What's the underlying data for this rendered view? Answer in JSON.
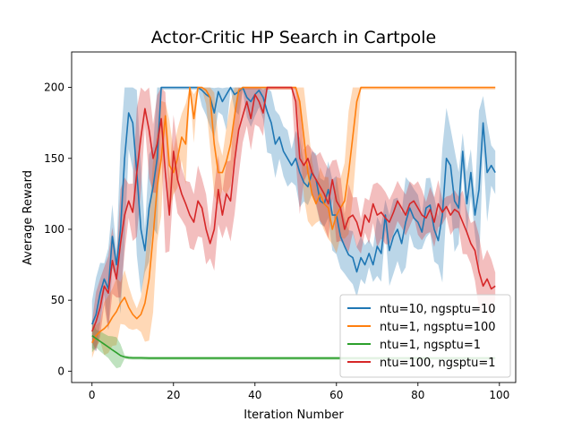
{
  "chart_data": {
    "type": "line",
    "title": "Actor-Critic HP Search in Cartpole",
    "xlabel": "Iteration Number",
    "ylabel": "Average Reward",
    "xlim": [
      -5,
      104
    ],
    "ylim": [
      -8,
      225
    ],
    "xticks": [
      0,
      20,
      40,
      60,
      80,
      100
    ],
    "yticks": [
      0,
      50,
      100,
      150,
      200
    ],
    "grid": false,
    "legend_position": "bottom-right",
    "series": [
      {
        "name": "ntu=10, ngsptu=10",
        "color": "#1f77b4",
        "x": [
          0,
          1,
          2,
          3,
          4,
          5,
          6,
          7,
          8,
          9,
          10,
          11,
          12,
          13,
          14,
          15,
          16,
          17,
          18,
          19,
          20,
          21,
          22,
          23,
          24,
          25,
          26,
          27,
          28,
          29,
          30,
          31,
          32,
          33,
          34,
          35,
          36,
          37,
          38,
          39,
          40,
          41,
          42,
          43,
          44,
          45,
          46,
          47,
          48,
          49,
          50,
          51,
          52,
          53,
          54,
          55,
          56,
          57,
          58,
          59,
          60,
          61,
          62,
          63,
          64,
          65,
          66,
          67,
          68,
          69,
          70,
          71,
          72,
          73,
          74,
          75,
          76,
          77,
          78,
          79,
          80,
          81,
          82,
          83,
          84,
          85,
          86,
          87,
          88,
          89,
          90,
          91,
          92,
          93,
          94,
          95,
          96,
          97,
          98,
          99
        ],
        "y": [
          33,
          40,
          55,
          65,
          58,
          95,
          75,
          100,
          150,
          182,
          175,
          140,
          100,
          85,
          115,
          130,
          150,
          200,
          200,
          200,
          200,
          200,
          200,
          200,
          200,
          200,
          200,
          198,
          195,
          193,
          182,
          197,
          190,
          195,
          200,
          195,
          197,
          200,
          193,
          190,
          195,
          198,
          193,
          183,
          175,
          160,
          165,
          155,
          150,
          145,
          150,
          140,
          133,
          130,
          140,
          135,
          120,
          118,
          128,
          110,
          110,
          95,
          88,
          82,
          80,
          70,
          80,
          75,
          83,
          75,
          88,
          83,
          110,
          85,
          95,
          100,
          90,
          105,
          115,
          108,
          105,
          98,
          115,
          117,
          100,
          92,
          110,
          150,
          145,
          120,
          115,
          155,
          118,
          140,
          110,
          128,
          175,
          140,
          145,
          140
        ]
      },
      {
        "name": "ntu=1, ngsptu=100",
        "color": "#ff7f0e",
        "x": [
          0,
          1,
          2,
          3,
          4,
          5,
          6,
          7,
          8,
          9,
          10,
          11,
          12,
          13,
          14,
          15,
          16,
          17,
          18,
          19,
          20,
          21,
          22,
          23,
          24,
          25,
          26,
          27,
          28,
          29,
          30,
          31,
          32,
          33,
          34,
          35,
          36,
          37,
          38,
          39,
          40,
          41,
          42,
          43,
          44,
          45,
          46,
          47,
          48,
          49,
          50,
          51,
          52,
          53,
          54,
          55,
          56,
          57,
          58,
          59,
          60,
          61,
          62,
          63,
          64,
          65,
          66,
          67,
          68,
          69,
          70,
          71,
          72,
          73,
          74,
          75,
          76,
          77,
          78,
          79,
          80,
          81,
          82,
          83,
          84,
          85,
          86,
          87,
          88,
          89,
          90,
          91,
          92,
          93,
          94,
          95,
          96,
          97,
          98,
          99
        ],
        "y": [
          20,
          25,
          28,
          30,
          33,
          38,
          42,
          48,
          52,
          45,
          40,
          37,
          40,
          48,
          65,
          95,
          130,
          150,
          180,
          145,
          140,
          150,
          165,
          160,
          200,
          178,
          200,
          200,
          198,
          193,
          160,
          140,
          140,
          148,
          160,
          180,
          198,
          200,
          200,
          200,
          200,
          200,
          200,
          200,
          200,
          200,
          200,
          200,
          200,
          200,
          200,
          190,
          165,
          140,
          125,
          118,
          125,
          118,
          115,
          100,
          110,
          115,
          120,
          140,
          165,
          190,
          200,
          200,
          200,
          200,
          200,
          200,
          200,
          200,
          200,
          200,
          200,
          200,
          200,
          200,
          200,
          200,
          200,
          200,
          200,
          200,
          200,
          200,
          200,
          200,
          200,
          200,
          200,
          200,
          200,
          200,
          200,
          200,
          200,
          200
        ]
      },
      {
        "name": "ntu=1, ngsptu=1",
        "color": "#2ca02c",
        "x": [
          0,
          1,
          2,
          3,
          4,
          5,
          6,
          7,
          8,
          9,
          10,
          12,
          14,
          16,
          18,
          20,
          25,
          30,
          40,
          50,
          60,
          70,
          80,
          90,
          99
        ],
        "y": [
          25,
          23,
          21,
          19,
          17,
          15,
          13,
          11,
          10,
          9.5,
          9.3,
          9.3,
          9.2,
          9.2,
          9.2,
          9.2,
          9.2,
          9.2,
          9.2,
          9.2,
          9.2,
          9.2,
          9.2,
          9.2,
          9.2
        ]
      },
      {
        "name": "ntu=100, ngsptu=1",
        "color": "#d62728",
        "x": [
          0,
          1,
          2,
          3,
          4,
          5,
          6,
          7,
          8,
          9,
          10,
          11,
          12,
          13,
          14,
          15,
          16,
          17,
          18,
          19,
          20,
          21,
          22,
          23,
          24,
          25,
          26,
          27,
          28,
          29,
          30,
          31,
          32,
          33,
          34,
          35,
          36,
          37,
          38,
          39,
          40,
          41,
          42,
          43,
          44,
          45,
          46,
          47,
          48,
          49,
          50,
          51,
          52,
          53,
          54,
          55,
          56,
          57,
          58,
          59,
          60,
          61,
          62,
          63,
          64,
          65,
          66,
          67,
          68,
          69,
          70,
          71,
          72,
          73,
          74,
          75,
          76,
          77,
          78,
          79,
          80,
          81,
          82,
          83,
          84,
          85,
          86,
          87,
          88,
          89,
          90,
          91,
          92,
          93,
          94,
          95,
          96,
          97,
          98,
          99
        ],
        "y": [
          28,
          35,
          45,
          60,
          55,
          78,
          65,
          90,
          110,
          120,
          112,
          140,
          165,
          185,
          170,
          150,
          160,
          178,
          140,
          110,
          155,
          135,
          125,
          118,
          110,
          105,
          120,
          115,
          100,
          90,
          100,
          128,
          110,
          125,
          120,
          148,
          170,
          180,
          190,
          178,
          195,
          190,
          182,
          200,
          200,
          200,
          200,
          200,
          200,
          200,
          190,
          150,
          145,
          150,
          140,
          135,
          130,
          125,
          118,
          135,
          120,
          115,
          100,
          108,
          110,
          105,
          95,
          110,
          105,
          118,
          110,
          112,
          108,
          105,
          112,
          120,
          115,
          110,
          118,
          120,
          115,
          110,
          108,
          114,
          105,
          118,
          112,
          116,
          110,
          114,
          112,
          105,
          98,
          90,
          85,
          70,
          60,
          65,
          58,
          60
        ]
      }
    ]
  }
}
